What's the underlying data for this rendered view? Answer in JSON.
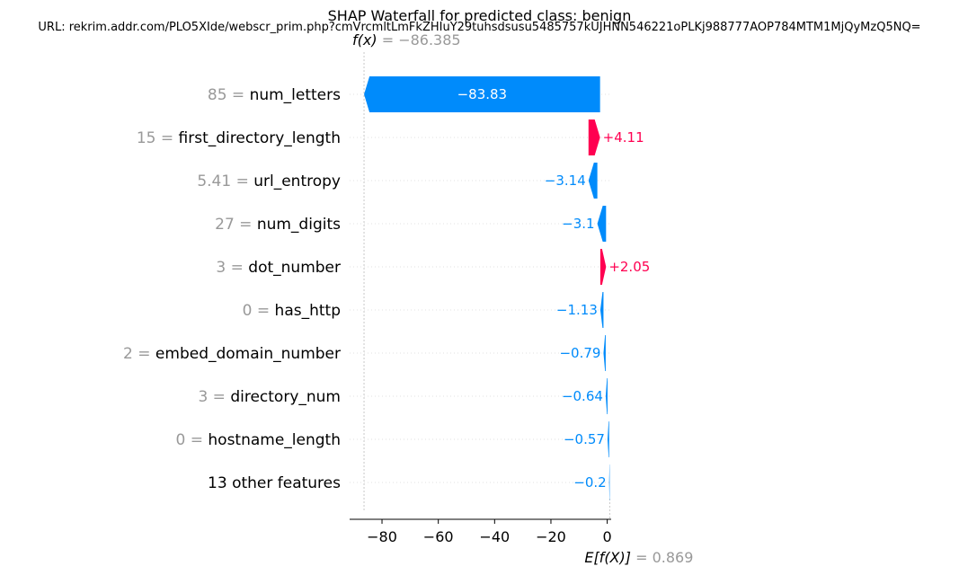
{
  "chart_data": {
    "type": "waterfall",
    "title": "SHAP Waterfall for predicted class: benign",
    "subtitle": "URL: rekrim.addr.com/PLO5XIde/webscr_prim.php?cmVrcmltLmFkZHIuY29tuhsdsusu5485757kUJHNN546221oPLKj988777AOP784MTM1MjQyMzQ5NQ=",
    "fx": {
      "prefix": "f(x)",
      "eq": " = ",
      "value": "−86.385",
      "numeric": -86.385
    },
    "base": {
      "prefix": "E[f(X)]",
      "eq": " = ",
      "value": "0.869",
      "numeric": 0.869
    },
    "xlim": [
      -91.5,
      1.4
    ],
    "xticks": [
      -80,
      -60,
      -40,
      -20,
      0
    ],
    "xtick_labels": [
      "−80",
      "−60",
      "−40",
      "−20",
      "0"
    ],
    "features": [
      {
        "value": "85",
        "eq": " = ",
        "name": "num_letters",
        "shap": -83.83,
        "label": "−83.83"
      },
      {
        "value": "15",
        "eq": " = ",
        "name": "first_directory_length",
        "shap": 4.11,
        "label": "+4.11"
      },
      {
        "value": "5.41",
        "eq": " = ",
        "name": "url_entropy",
        "shap": -3.14,
        "label": "−3.14"
      },
      {
        "value": "27",
        "eq": " = ",
        "name": "num_digits",
        "shap": -3.1,
        "label": "−3.1"
      },
      {
        "value": "3",
        "eq": " = ",
        "name": "dot_number",
        "shap": 2.05,
        "label": "+2.05"
      },
      {
        "value": "0",
        "eq": " = ",
        "name": "has_http",
        "shap": -1.13,
        "label": "−1.13"
      },
      {
        "value": "2",
        "eq": " = ",
        "name": "embed_domain_number",
        "shap": -0.79,
        "label": "−0.79"
      },
      {
        "value": "3",
        "eq": " = ",
        "name": "directory_num",
        "shap": -0.64,
        "label": "−0.64"
      },
      {
        "value": "0",
        "eq": " = ",
        "name": "hostname_length",
        "shap": -0.57,
        "label": "−0.57"
      },
      {
        "value": "",
        "eq": "",
        "name": "13 other features",
        "shap": -0.2,
        "label": "−0.2"
      }
    ],
    "colors": {
      "negative": "#008bfb",
      "positive": "#ff0051",
      "muted": "#999999",
      "grid": "#cccccc"
    }
  }
}
